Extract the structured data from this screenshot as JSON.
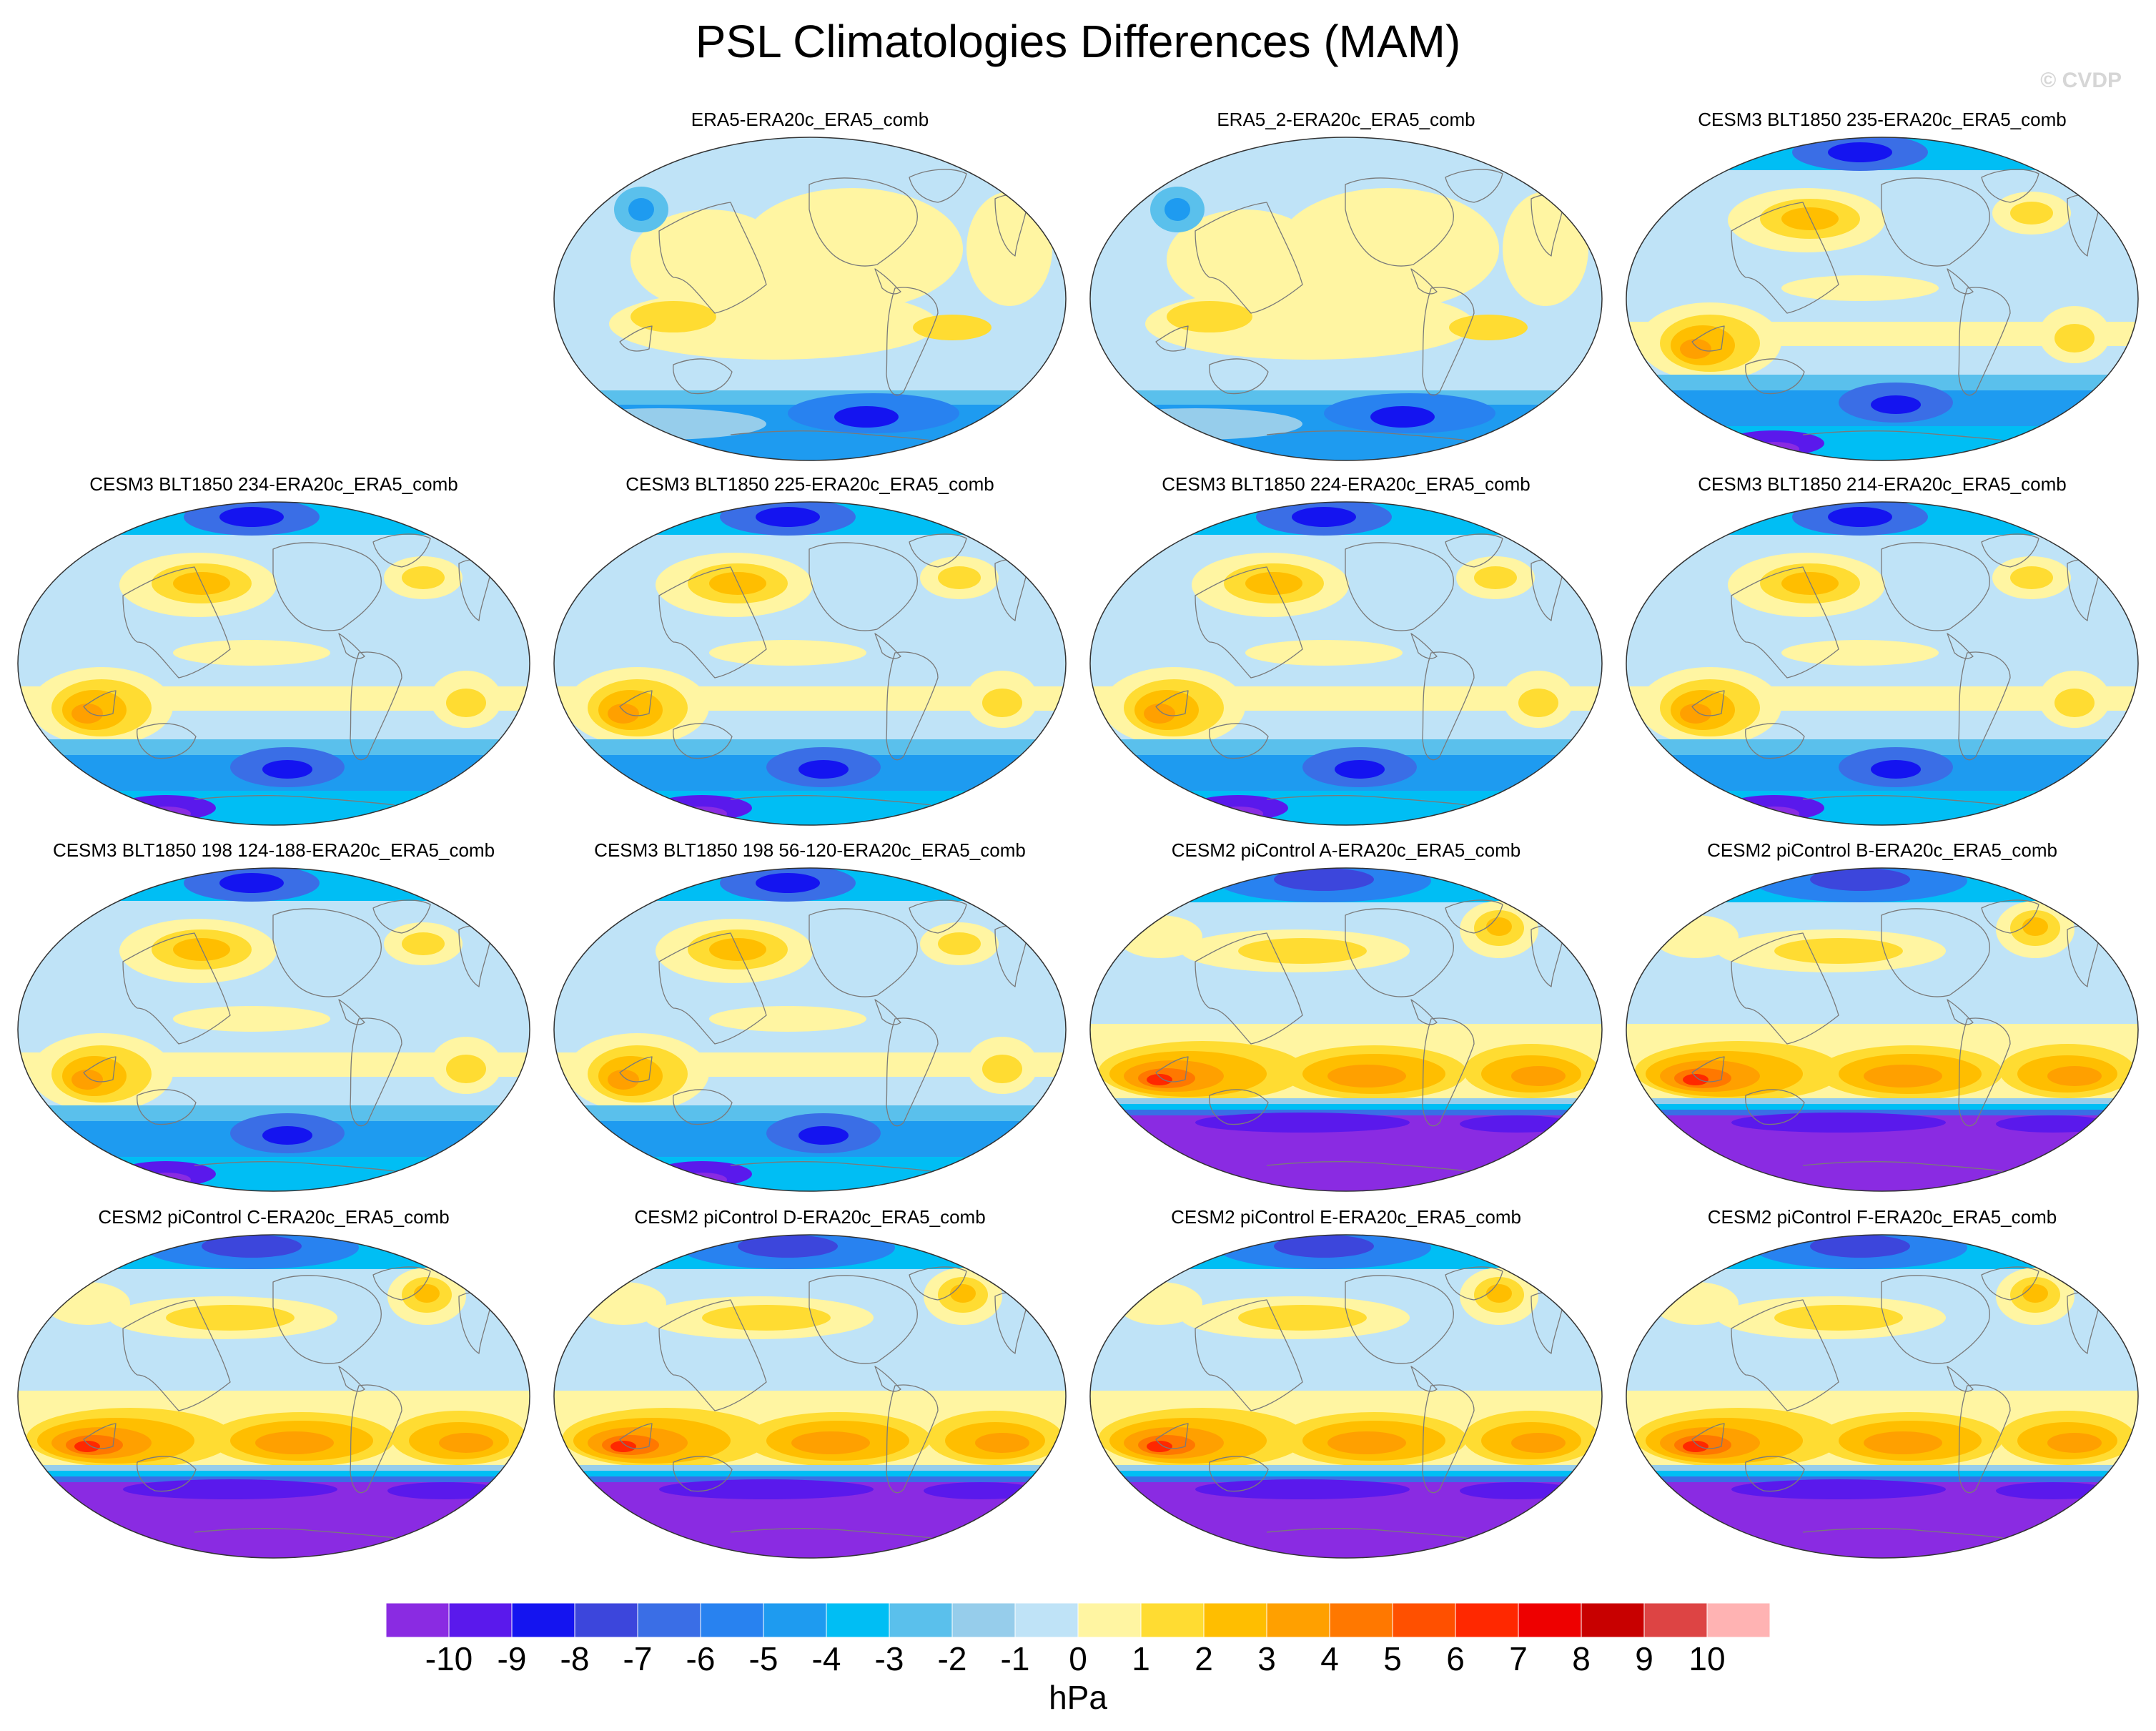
{
  "title": "PSL Climatologies Differences (MAM)",
  "copyright": "© CVDP",
  "colorbar": {
    "units": "hPa",
    "labels": [
      "-10",
      "-9",
      "-8",
      "-7",
      "-6",
      "-5",
      "-4",
      "-3",
      "-2",
      "-1",
      "0",
      "1",
      "2",
      "3",
      "4",
      "5",
      "6",
      "7",
      "8",
      "9",
      "10"
    ],
    "colors": [
      "#8a2be2",
      "#5a19ec",
      "#1414f0",
      "#3c46dc",
      "#3a6ee6",
      "#2882f0",
      "#1e9bf0",
      "#00bef4",
      "#5ac0ec",
      "#96cdeb",
      "#bfe3f7",
      "#fff5a2",
      "#ffdc32",
      "#ffbe00",
      "#ffa000",
      "#ff7800",
      "#ff5000",
      "#ff2800",
      "#ee0000",
      "#c80000",
      "#dd4444",
      "#ffb3b3"
    ]
  },
  "panels": [
    {
      "title": "ERA5-ERA20c_ERA5_comb",
      "style": "reanalysis"
    },
    {
      "title": "ERA5_2-ERA20c_ERA5_comb",
      "style": "reanalysis"
    },
    {
      "title": "CESM3 BLT1850 235-ERA20c_ERA5_comb",
      "style": "cesm3"
    },
    {
      "title": "CESM3 BLT1850 234-ERA20c_ERA5_comb",
      "style": "cesm3"
    },
    {
      "title": "CESM3 BLT1850 225-ERA20c_ERA5_comb",
      "style": "cesm3"
    },
    {
      "title": "CESM3 BLT1850 224-ERA20c_ERA5_comb",
      "style": "cesm3"
    },
    {
      "title": "CESM3 BLT1850 214-ERA20c_ERA5_comb",
      "style": "cesm3"
    },
    {
      "title": "CESM3 BLT1850 198 124-188-ERA20c_ERA5_comb",
      "style": "cesm3"
    },
    {
      "title": "CESM3 BLT1850 198 56-120-ERA20c_ERA5_comb",
      "style": "cesm3"
    },
    {
      "title": "CESM2 piControl A-ERA20c_ERA5_comb",
      "style": "cesm2"
    },
    {
      "title": "CESM2 piControl B-ERA20c_ERA5_comb",
      "style": "cesm2"
    },
    {
      "title": "CESM2 piControl C-ERA20c_ERA5_comb",
      "style": "cesm2"
    },
    {
      "title": "CESM2 piControl D-ERA20c_ERA5_comb",
      "style": "cesm2"
    },
    {
      "title": "CESM2 piControl E-ERA20c_ERA5_comb",
      "style": "cesm2"
    },
    {
      "title": "CESM2 piControl F-ERA20c_ERA5_comb",
      "style": "cesm2"
    }
  ]
}
